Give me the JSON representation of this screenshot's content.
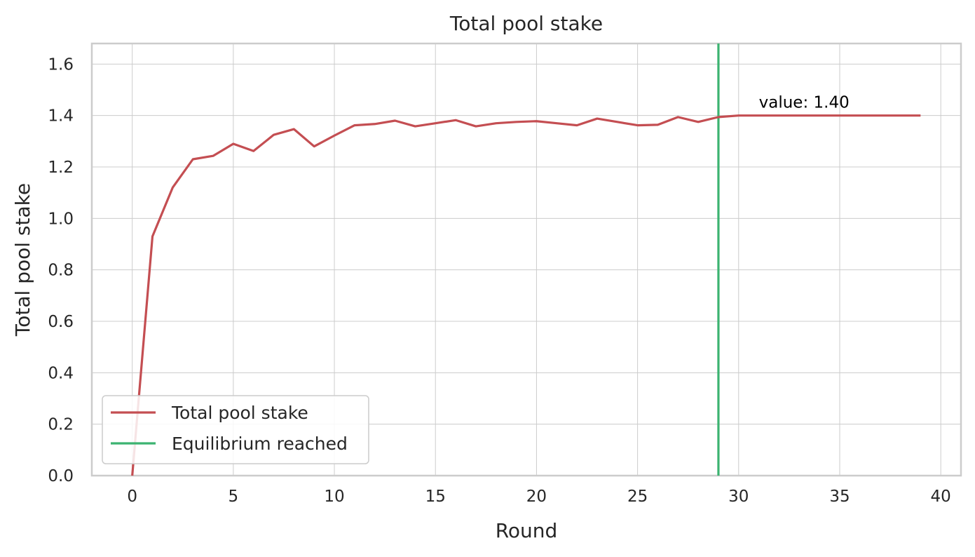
{
  "chart_data": {
    "type": "line",
    "title": "Total pool stake",
    "xlabel": "Round",
    "ylabel": "Total pool stake",
    "xlim": [
      -2,
      41
    ],
    "ylim": [
      0,
      1.68
    ],
    "xticks": [
      0,
      5,
      10,
      15,
      20,
      25,
      30,
      35,
      40
    ],
    "yticks": [
      0.0,
      0.2,
      0.4,
      0.6,
      0.8,
      1.0,
      1.2,
      1.4,
      1.6
    ],
    "grid": true,
    "legend_position": "lower-left",
    "series": [
      {
        "name": "Total pool stake",
        "color": "#c44e52",
        "x": [
          0,
          1,
          2,
          3,
          4,
          5,
          6,
          7,
          8,
          9,
          10,
          11,
          12,
          13,
          14,
          15,
          16,
          17,
          18,
          19,
          20,
          21,
          22,
          23,
          24,
          25,
          26,
          27,
          28,
          29,
          30,
          31,
          32,
          33,
          34,
          35,
          36,
          37,
          38,
          39
        ],
        "y": [
          0.0,
          0.93,
          1.12,
          1.23,
          1.243,
          1.29,
          1.262,
          1.325,
          1.347,
          1.28,
          1.322,
          1.362,
          1.367,
          1.38,
          1.358,
          1.37,
          1.382,
          1.358,
          1.37,
          1.375,
          1.378,
          1.37,
          1.362,
          1.388,
          1.375,
          1.362,
          1.364,
          1.394,
          1.375,
          1.394,
          1.4,
          1.4,
          1.4,
          1.4,
          1.4,
          1.4,
          1.4,
          1.4,
          1.4,
          1.4
        ]
      }
    ],
    "vlines": [
      {
        "name": "Equilibrium reached",
        "x": 29,
        "color": "#3cb371"
      }
    ],
    "annotations": [
      {
        "text": "value: 1.40",
        "x": 31,
        "y": 1.43
      }
    ]
  }
}
